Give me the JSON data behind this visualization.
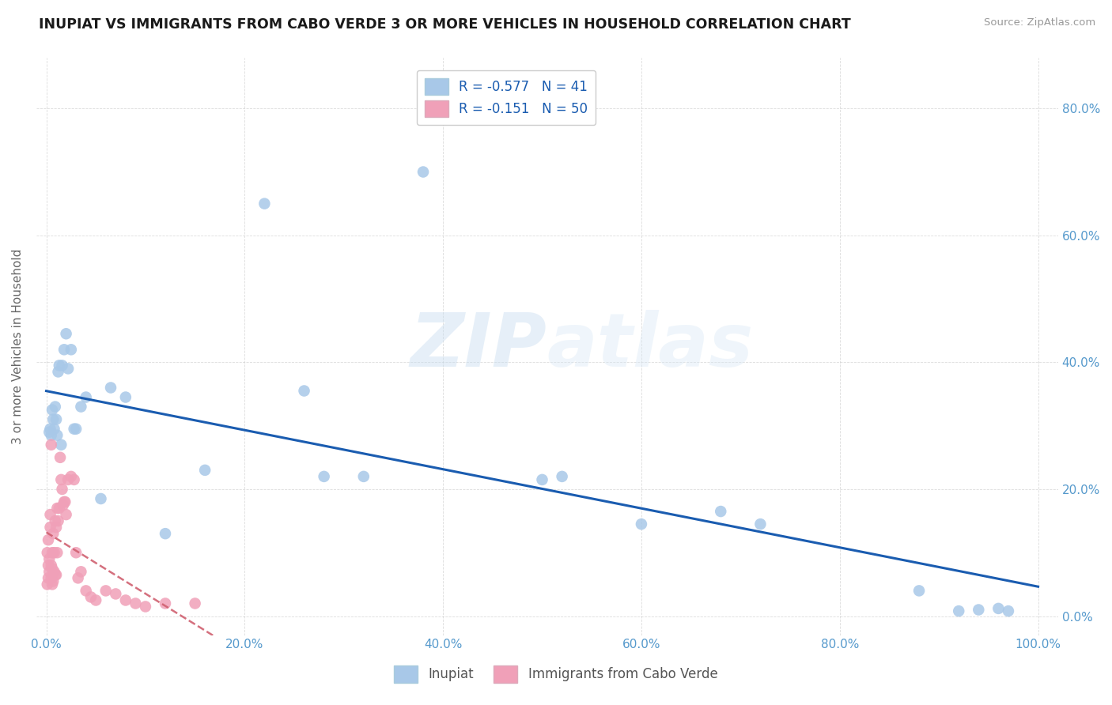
{
  "title": "INUPIAT VS IMMIGRANTS FROM CABO VERDE 3 OR MORE VEHICLES IN HOUSEHOLD CORRELATION CHART",
  "source": "Source: ZipAtlas.com",
  "ylabel": "3 or more Vehicles in Household",
  "legend_label1": "Inupiat",
  "legend_label2": "Immigrants from Cabo Verde",
  "R1": -0.577,
  "N1": 41,
  "R2": -0.151,
  "N2": 50,
  "xlim": [
    -0.01,
    1.02
  ],
  "ylim": [
    -0.03,
    0.88
  ],
  "xticks": [
    0.0,
    0.2,
    0.4,
    0.6,
    0.8,
    1.0
  ],
  "yticks": [
    0.0,
    0.2,
    0.4,
    0.6,
    0.8
  ],
  "xticklabels": [
    "0.0%",
    "20.0%",
    "40.0%",
    "60.0%",
    "80.0%",
    "100.0%"
  ],
  "right_yticklabels": [
    "0.0%",
    "20.0%",
    "40.0%",
    "60.0%",
    "80.0%"
  ],
  "color_blue": "#a8c8e8",
  "color_pink": "#f0a0b8",
  "line_blue": "#1a5cb0",
  "line_pink": "#d06070",
  "watermark_zip": "ZIP",
  "watermark_atlas": "atlas",
  "title_fontsize": 12.5,
  "inupiat_x": [
    0.003,
    0.004,
    0.005,
    0.006,
    0.007,
    0.008,
    0.009,
    0.01,
    0.011,
    0.012,
    0.013,
    0.015,
    0.016,
    0.018,
    0.02,
    0.022,
    0.025,
    0.028,
    0.03,
    0.035,
    0.04,
    0.055,
    0.065,
    0.08,
    0.12,
    0.16,
    0.22,
    0.26,
    0.28,
    0.32,
    0.38,
    0.5,
    0.52,
    0.6,
    0.68,
    0.72,
    0.88,
    0.92,
    0.94,
    0.96,
    0.97
  ],
  "inupiat_y": [
    0.29,
    0.295,
    0.285,
    0.325,
    0.31,
    0.295,
    0.33,
    0.31,
    0.285,
    0.385,
    0.395,
    0.27,
    0.395,
    0.42,
    0.445,
    0.39,
    0.42,
    0.295,
    0.295,
    0.33,
    0.345,
    0.185,
    0.36,
    0.345,
    0.13,
    0.23,
    0.65,
    0.355,
    0.22,
    0.22,
    0.7,
    0.215,
    0.22,
    0.145,
    0.165,
    0.145,
    0.04,
    0.008,
    0.01,
    0.012,
    0.008
  ],
  "cabo_verde_x": [
    0.001,
    0.001,
    0.002,
    0.002,
    0.002,
    0.003,
    0.003,
    0.004,
    0.004,
    0.005,
    0.005,
    0.005,
    0.006,
    0.006,
    0.006,
    0.007,
    0.007,
    0.008,
    0.008,
    0.009,
    0.009,
    0.01,
    0.01,
    0.011,
    0.011,
    0.012,
    0.013,
    0.014,
    0.015,
    0.016,
    0.017,
    0.018,
    0.019,
    0.02,
    0.022,
    0.025,
    0.028,
    0.03,
    0.032,
    0.035,
    0.04,
    0.045,
    0.05,
    0.06,
    0.07,
    0.08,
    0.09,
    0.1,
    0.12,
    0.15
  ],
  "cabo_verde_y": [
    0.05,
    0.1,
    0.06,
    0.08,
    0.12,
    0.07,
    0.09,
    0.14,
    0.16,
    0.06,
    0.08,
    0.27,
    0.05,
    0.075,
    0.1,
    0.055,
    0.13,
    0.07,
    0.1,
    0.065,
    0.15,
    0.065,
    0.14,
    0.1,
    0.17,
    0.15,
    0.17,
    0.25,
    0.215,
    0.2,
    0.175,
    0.18,
    0.18,
    0.16,
    0.215,
    0.22,
    0.215,
    0.1,
    0.06,
    0.07,
    0.04,
    0.03,
    0.025,
    0.04,
    0.035,
    0.025,
    0.02,
    0.015,
    0.02,
    0.02
  ]
}
